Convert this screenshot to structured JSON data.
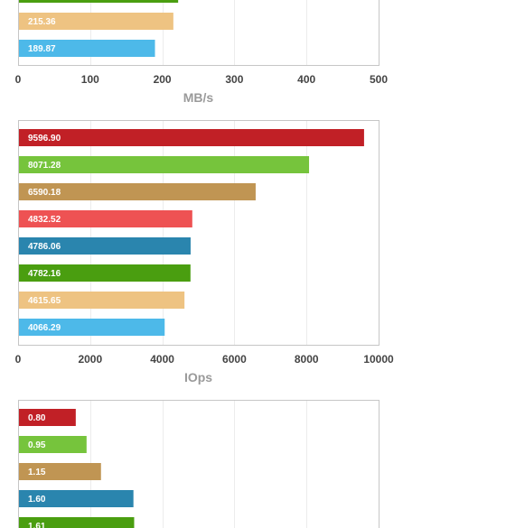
{
  "chart_data": [
    {
      "type": "bar",
      "orientation": "horizontal",
      "xlabel": "MB/s",
      "xlim": [
        0,
        500
      ],
      "xticks": [
        0,
        100,
        200,
        300,
        400,
        500
      ],
      "grid": true,
      "partially_visible": "bottom rows only (top cut off)",
      "bars": [
        {
          "value": 222,
          "label": "",
          "color": "#4a9e10"
        },
        {
          "value": 215.36,
          "label": "215.36",
          "color": "#eec382"
        },
        {
          "value": 189.87,
          "label": "189.87",
          "color": "#4db9e9"
        }
      ]
    },
    {
      "type": "bar",
      "orientation": "horizontal",
      "xlabel": "IOps",
      "xlim": [
        0,
        10000
      ],
      "xticks": [
        0,
        2000,
        4000,
        6000,
        8000,
        10000
      ],
      "grid": true,
      "bars": [
        {
          "value": 9596.9,
          "label": "9596.90",
          "color": "#c12026"
        },
        {
          "value": 8071.28,
          "label": "8071.28",
          "color": "#76c43c"
        },
        {
          "value": 6590.18,
          "label": "6590.18",
          "color": "#c09553"
        },
        {
          "value": 4832.52,
          "label": "4832.52",
          "color": "#ee5253"
        },
        {
          "value": 4786.06,
          "label": "4786.06",
          "color": "#2a85ae"
        },
        {
          "value": 4782.16,
          "label": "4782.16",
          "color": "#4a9e10"
        },
        {
          "value": 4615.65,
          "label": "4615.65",
          "color": "#eec382"
        },
        {
          "value": 4066.29,
          "label": "4066.29",
          "color": "#4db9e9"
        }
      ]
    },
    {
      "type": "bar",
      "orientation": "horizontal",
      "xlabel": "",
      "xlim": [
        0,
        5
      ],
      "grid": true,
      "partially_visible": "top rows only (bottom cut off)",
      "bars": [
        {
          "value": 0.8,
          "label": "0.80",
          "color": "#c12026"
        },
        {
          "value": 0.95,
          "label": "0.95",
          "color": "#76c43c"
        },
        {
          "value": 1.15,
          "label": "1.15",
          "color": "#c09553"
        },
        {
          "value": 1.6,
          "label": "1.60",
          "color": "#2a85ae"
        },
        {
          "value": 1.61,
          "label": "1.61",
          "color": "#4a9e10"
        }
      ]
    }
  ]
}
